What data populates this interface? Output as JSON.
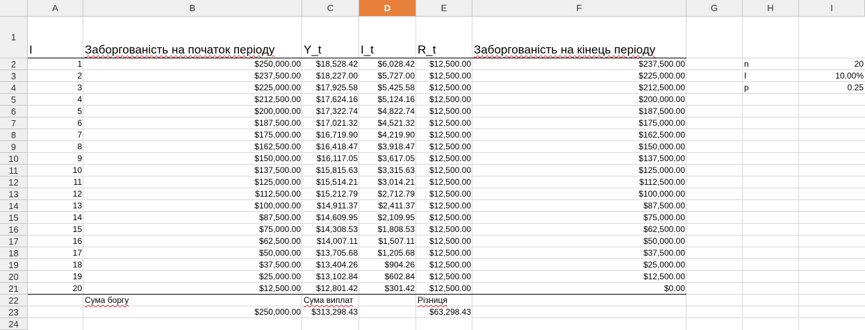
{
  "columns": [
    "A",
    "B",
    "C",
    "D",
    "E",
    "F",
    "G",
    "H",
    "I"
  ],
  "selected_column": "D",
  "row_numbers": [
    "1",
    "2",
    "3",
    "4",
    "5",
    "6",
    "7",
    "8",
    "9",
    "10",
    "11",
    "12",
    "13",
    "14",
    "15",
    "16",
    "17",
    "18",
    "19",
    "20",
    "21",
    "22",
    "23",
    "24"
  ],
  "header_row": {
    "A": "I",
    "B": "Заборгованість на початок періоду",
    "C": "Y_t",
    "D": "I_t",
    "E": "R_t",
    "F": "Заборгованість на кінець періоду"
  },
  "rows": [
    [
      "1",
      "$250,000.00",
      "$18,528.42",
      "$6,028.42",
      "$12,500.00",
      "$237,500.00"
    ],
    [
      "2",
      "$237,500.00",
      "$18,227.00",
      "$5,727.00",
      "$12,500.00",
      "$225,000.00"
    ],
    [
      "3",
      "$225,000.00",
      "$17,925.58",
      "$5,425.58",
      "$12,500.00",
      "$212,500.00"
    ],
    [
      "4",
      "$212,500.00",
      "$17,624.16",
      "$5,124.16",
      "$12,500.00",
      "$200,000.00"
    ],
    [
      "5",
      "$200,000.00",
      "$17,322.74",
      "$4,822.74",
      "$12,500.00",
      "$187,500.00"
    ],
    [
      "6",
      "$187,500.00",
      "$17,021.32",
      "$4,521.32",
      "$12,500.00",
      "$175,000.00"
    ],
    [
      "7",
      "$175,000.00",
      "$16,719.90",
      "$4,219.90",
      "$12,500.00",
      "$162,500.00"
    ],
    [
      "8",
      "$162,500.00",
      "$16,418.47",
      "$3,918.47",
      "$12,500.00",
      "$150,000.00"
    ],
    [
      "9",
      "$150,000.00",
      "$16,117.05",
      "$3,617.05",
      "$12,500.00",
      "$137,500.00"
    ],
    [
      "10",
      "$137,500.00",
      "$15,815.63",
      "$3,315.63",
      "$12,500.00",
      "$125,000.00"
    ],
    [
      "11",
      "$125,000.00",
      "$15,514.21",
      "$3,014.21",
      "$12,500.00",
      "$112,500.00"
    ],
    [
      "12",
      "$112,500.00",
      "$15,212.79",
      "$2,712.79",
      "$12,500.00",
      "$100,000.00"
    ],
    [
      "13",
      "$100,000.00",
      "$14,911.37",
      "$2,411.37",
      "$12,500.00",
      "$87,500.00"
    ],
    [
      "14",
      "$87,500.00",
      "$14,609.95",
      "$2,109.95",
      "$12,500.00",
      "$75,000.00"
    ],
    [
      "15",
      "$75,000.00",
      "$14,308.53",
      "$1,808.53",
      "$12,500.00",
      "$62,500.00"
    ],
    [
      "16",
      "$62,500.00",
      "$14,007.11",
      "$1,507.11",
      "$12,500.00",
      "$50,000.00"
    ],
    [
      "17",
      "$50,000.00",
      "$13,705.68",
      "$1,205.68",
      "$12,500.00",
      "$37,500.00"
    ],
    [
      "18",
      "$37,500.00",
      "$13,404.26",
      "$904.26",
      "$12,500.00",
      "$25,000.00"
    ],
    [
      "19",
      "$25,000.00",
      "$13,102.84",
      "$602.84",
      "$12,500.00",
      "$12,500.00"
    ],
    [
      "20",
      "$12,500.00",
      "$12,801.42",
      "$301.42",
      "$12,500.00",
      "$0.00"
    ]
  ],
  "params": [
    {
      "label": "n",
      "value": "20"
    },
    {
      "label": "I",
      "value": "10.00%"
    },
    {
      "label": "p",
      "value": "0.25"
    }
  ],
  "summary_labels": {
    "B": "Сума боргу",
    "C": "Сума виплат",
    "E": "Різниця"
  },
  "summary_values": {
    "B": "$250,000.00",
    "C": "$313,298.43",
    "E": "$63,298.43"
  }
}
